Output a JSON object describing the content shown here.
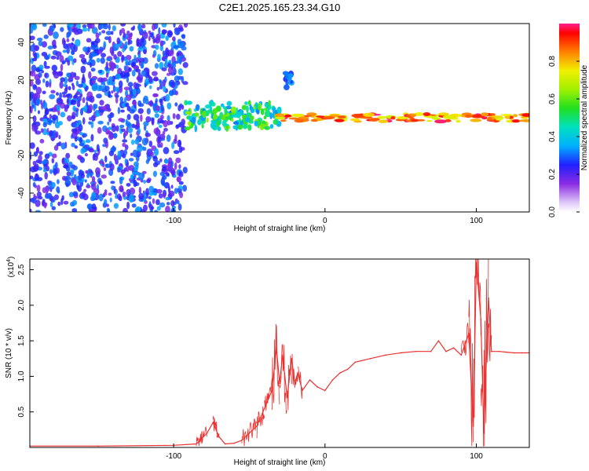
{
  "title": "C2E1.2025.165.23.34.G10",
  "colorbar": {
    "label": "Normalized spectral amplitude",
    "ticks": [
      0.0,
      0.2,
      0.4,
      0.6,
      0.8
    ],
    "range": [
      0,
      1
    ]
  },
  "chart_data": [
    {
      "type": "heatmap",
      "xlabel": "Height of straight line (km)",
      "ylabel": "Frequency (Hz)",
      "xlim": [
        -195,
        135
      ],
      "ylim": [
        -50,
        50
      ],
      "xticks": [
        -100,
        0,
        100
      ],
      "yticks": [
        -40,
        -20,
        0,
        20,
        40
      ],
      "grid": false,
      "regions": [
        {
          "x_range": [
            -195,
            -92
          ],
          "frequency_range": [
            -50,
            50
          ],
          "amplitude": [
            0.15,
            0.35
          ]
        },
        {
          "x_range": [
            -92,
            -30
          ],
          "frequency_range": [
            -6,
            8
          ],
          "amplitude": [
            0.3,
            0.65
          ]
        },
        {
          "x_range": [
            -26,
            -22
          ],
          "frequency_range": [
            16,
            24
          ],
          "amplitude": [
            0.25,
            0.35
          ]
        },
        {
          "x_range": [
            -30,
            135
          ],
          "frequency_range": [
            -2,
            2
          ],
          "amplitude": [
            0.7,
            1.0
          ]
        }
      ]
    },
    {
      "type": "line",
      "xlabel": "Height of straight line (km)",
      "ylabel": "SNR (10 * v/v)",
      "y_scale_label": "(x10^4)",
      "y_scale_base": "(x10",
      "y_scale_exp": "4",
      "xlim": [
        -195,
        135
      ],
      "ylim": [
        0,
        2.65
      ],
      "xticks": [
        -100,
        0,
        100
      ],
      "yticks": [
        0.5,
        1.0,
        1.5,
        2.0,
        2.5
      ],
      "grid": false,
      "color": "#e8302e",
      "x": [
        -195,
        -150,
        -100,
        -85,
        -78,
        -74,
        -70,
        -66,
        -60,
        -55,
        -45,
        -40,
        -35,
        -32,
        -30,
        -28,
        -25,
        -22,
        -20,
        -18,
        -15,
        -10,
        -5,
        0,
        5,
        10,
        15,
        20,
        30,
        40,
        50,
        60,
        70,
        75,
        80,
        85,
        90,
        95,
        98,
        100,
        103,
        105,
        108,
        110,
        115,
        120,
        125,
        130,
        135
      ],
      "y": [
        0.02,
        0.02,
        0.03,
        0.05,
        0.2,
        0.35,
        0.15,
        0.05,
        0.06,
        0.1,
        0.3,
        0.55,
        0.8,
        1.4,
        0.9,
        1.3,
        0.7,
        1.25,
        0.9,
        1.05,
        0.8,
        0.95,
        0.85,
        0.8,
        0.95,
        1.05,
        1.1,
        1.2,
        1.25,
        1.3,
        1.33,
        1.35,
        1.35,
        1.5,
        1.35,
        1.4,
        1.3,
        1.6,
        0.3,
        2.6,
        1.8,
        0.2,
        2.1,
        1.35,
        1.35,
        1.34,
        1.33,
        1.33,
        1.33
      ]
    }
  ]
}
